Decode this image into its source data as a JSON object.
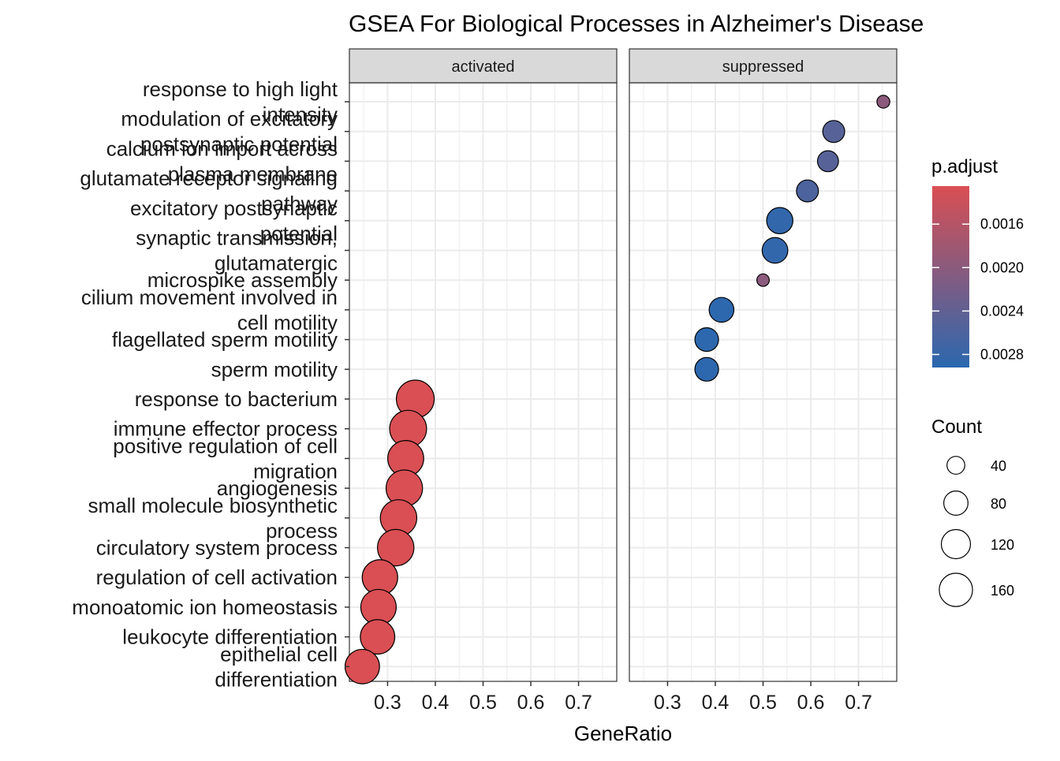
{
  "chart_data": {
    "type": "scatter",
    "title": "GSEA For Biological Processes in Alzheimer's Disease",
    "xlabel": "GeneRatio",
    "ylabel": "",
    "xlim": [
      0.22,
      0.78
    ],
    "x_ticks": [
      "0.3",
      "0.4",
      "0.5",
      "0.6",
      "0.7"
    ],
    "x_tick_values": [
      0.3,
      0.4,
      0.5,
      0.6,
      0.7
    ],
    "grid": true,
    "facets": [
      "activated",
      "suppressed"
    ],
    "categories": [
      "response to high light intensity",
      "modulation of excitatory postsynaptic potential",
      "calcium ion import across plasma membrane",
      "glutamate receptor signaling pathway",
      "excitatory postsynaptic potential",
      "synaptic transmission, glutamatergic",
      "microspike assembly",
      "cilium movement involved in cell motility",
      "flagellated sperm motility",
      "sperm motility",
      "response to bacterium",
      "immune effector process",
      "positive regulation of cell migration",
      "angiogenesis",
      "small molecule biosynthetic process",
      "circulatory system process",
      "regulation of cell activation",
      "monoatomic ion homeostasis",
      "leukocyte differentiation",
      "epithelial cell differentiation"
    ],
    "category_label_lines": [
      [
        "response to high light",
        "intensity"
      ],
      [
        "modulation of excitatory",
        "postsynaptic potential"
      ],
      [
        "calcium ion import across",
        "plasma membrane"
      ],
      [
        "glutamate receptor signaling",
        "pathway"
      ],
      [
        "excitatory postsynaptic",
        "potential"
      ],
      [
        "synaptic transmission,",
        "glutamatergic"
      ],
      [
        "microspike assembly"
      ],
      [
        "cilium movement involved in",
        "cell motility"
      ],
      [
        "flagellated sperm motility"
      ],
      [
        "sperm motility"
      ],
      [
        "response to bacterium"
      ],
      [
        "immune effector process"
      ],
      [
        "positive regulation of cell",
        "migration"
      ],
      [
        "angiogenesis"
      ],
      [
        "small molecule biosynthetic",
        "process"
      ],
      [
        "circulatory system process"
      ],
      [
        "regulation of cell activation"
      ],
      [
        "monoatomic ion homeostasis"
      ],
      [
        "leukocyte differentiation"
      ],
      [
        "epithelial cell",
        "differentiation"
      ]
    ],
    "points": [
      {
        "category": "response to high light intensity",
        "facet": "suppressed",
        "x": 0.752,
        "count": 9,
        "p_adjust": 0.002
      },
      {
        "category": "modulation of excitatory postsynaptic potential",
        "facet": "suppressed",
        "x": 0.648,
        "count": 45,
        "p_adjust": 0.0025
      },
      {
        "category": "calcium ion import across plasma membrane",
        "facet": "suppressed",
        "x": 0.636,
        "count": 40,
        "p_adjust": 0.0025
      },
      {
        "category": "glutamate receptor signaling pathway",
        "facet": "suppressed",
        "x": 0.593,
        "count": 45,
        "p_adjust": 0.0026
      },
      {
        "category": "excitatory postsynaptic potential",
        "facet": "suppressed",
        "x": 0.535,
        "count": 72,
        "p_adjust": 0.00285
      },
      {
        "category": "synaptic transmission, glutamatergic",
        "facet": "suppressed",
        "x": 0.525,
        "count": 68,
        "p_adjust": 0.00285
      },
      {
        "category": "microspike assembly",
        "facet": "suppressed",
        "x": 0.5,
        "count": 8,
        "p_adjust": 0.002
      },
      {
        "category": "cilium movement involved in cell motility",
        "facet": "suppressed",
        "x": 0.413,
        "count": 62,
        "p_adjust": 0.0029
      },
      {
        "category": "flagellated sperm motility",
        "facet": "suppressed",
        "x": 0.382,
        "count": 55,
        "p_adjust": 0.0029
      },
      {
        "category": "sperm motility",
        "facet": "suppressed",
        "x": 0.382,
        "count": 55,
        "p_adjust": 0.0029
      },
      {
        "category": "response to bacterium",
        "facet": "activated",
        "x": 0.358,
        "count": 175,
        "p_adjust": 0.00125
      },
      {
        "category": "immune effector process",
        "facet": "activated",
        "x": 0.343,
        "count": 165,
        "p_adjust": 0.00125
      },
      {
        "category": "positive regulation of cell migration",
        "facet": "activated",
        "x": 0.338,
        "count": 155,
        "p_adjust": 0.00125
      },
      {
        "category": "angiogenesis",
        "facet": "activated",
        "x": 0.335,
        "count": 160,
        "p_adjust": 0.00125
      },
      {
        "category": "small molecule biosynthetic process",
        "facet": "activated",
        "x": 0.323,
        "count": 160,
        "p_adjust": 0.00125
      },
      {
        "category": "circulatory system process",
        "facet": "activated",
        "x": 0.317,
        "count": 160,
        "p_adjust": 0.00125
      },
      {
        "category": "regulation of cell activation",
        "facet": "activated",
        "x": 0.284,
        "count": 150,
        "p_adjust": 0.00125
      },
      {
        "category": "monoatomic ion homeostasis",
        "facet": "activated",
        "x": 0.281,
        "count": 150,
        "p_adjust": 0.00125
      },
      {
        "category": "leukocyte differentiation",
        "facet": "activated",
        "x": 0.279,
        "count": 140,
        "p_adjust": 0.00125
      },
      {
        "category": "epithelial cell differentiation",
        "facet": "activated",
        "x": 0.247,
        "count": 140,
        "p_adjust": 0.00125
      }
    ],
    "color_legend": {
      "title": "p.adjust",
      "tick_labels": [
        "0.0016",
        "0.0020",
        "0.0024",
        "0.0028"
      ],
      "tick_values": [
        0.0016,
        0.002,
        0.0024,
        0.0028
      ],
      "range": [
        0.00125,
        0.00292
      ],
      "low_color": "#d94f53",
      "high_color": "#2b68af"
    },
    "size_legend": {
      "title": "Count",
      "labels": [
        "40",
        "80",
        "120",
        "160"
      ],
      "values": [
        40,
        80,
        120,
        160
      ]
    },
    "legend_position": "right"
  },
  "colors": {
    "panel_grid": "#ebebeb",
    "panel_border": "#333333",
    "strip_fill": "#d9d9d9",
    "point_stroke": "#000000"
  }
}
